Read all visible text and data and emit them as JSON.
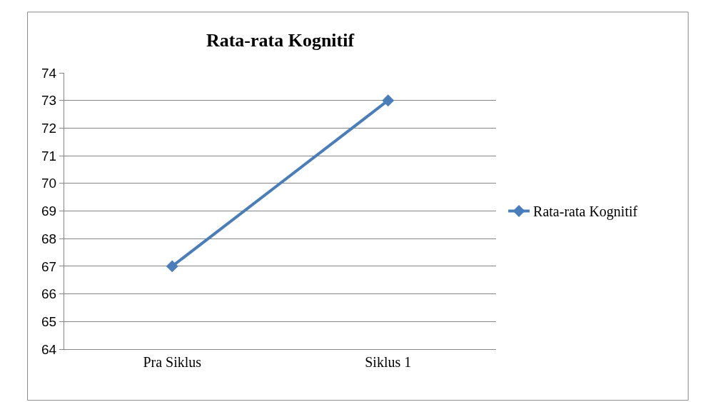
{
  "chart_data": {
    "type": "line",
    "title": "Rata-rata Kognitif",
    "categories": [
      "Pra Siklus",
      "Siklus 1"
    ],
    "series": [
      {
        "name": "Rata-rata Kognitif",
        "color": "#4a7ebb",
        "values": [
          67,
          73
        ]
      }
    ],
    "ylim": [
      64,
      74
    ],
    "yticks": [
      64,
      65,
      66,
      67,
      68,
      69,
      70,
      71,
      72,
      73,
      74
    ],
    "grid": "y",
    "legend": "right",
    "marker": "diamond",
    "line_style": "solid"
  }
}
